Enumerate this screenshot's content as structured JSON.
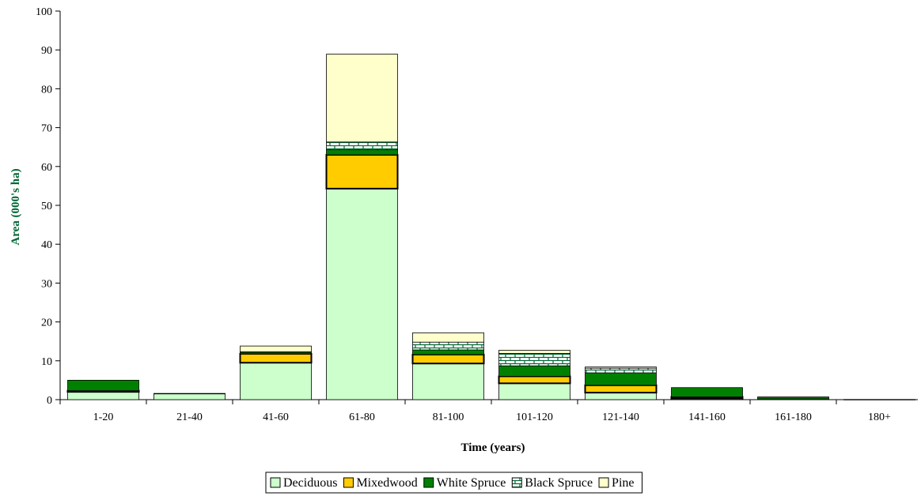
{
  "chart_data": {
    "type": "bar",
    "stacked": true,
    "title": "",
    "xlabel": "Time (years)",
    "ylabel": "Area (000's ha)",
    "ylim": [
      0,
      100
    ],
    "yticks": [
      0,
      10,
      20,
      30,
      40,
      50,
      60,
      70,
      80,
      90,
      100
    ],
    "grid": false,
    "legend_position": "bottom",
    "categories": [
      "1-20",
      "21-40",
      "41-60",
      "61-80",
      "81-100",
      "101-120",
      "121-140",
      "141-160",
      "161-180",
      "180+"
    ],
    "series": [
      {
        "name": "Deciduous",
        "color": "#ccffcc",
        "pattern": "none",
        "values": [
          2.0,
          1.5,
          9.5,
          54.3,
          9.3,
          4.2,
          1.8,
          0.3,
          0.2,
          0.05
        ]
      },
      {
        "name": "Mixedwood",
        "color": "#ffcc00",
        "pattern": "none",
        "values": [
          0.3,
          0.0,
          2.3,
          8.7,
          2.3,
          1.8,
          1.9,
          0.4,
          0.0,
          0.0
        ]
      },
      {
        "name": "White Spruce",
        "color": "#008000",
        "pattern": "none",
        "values": [
          2.7,
          0.1,
          0.4,
          1.3,
          1.2,
          2.7,
          3.2,
          2.4,
          0.5,
          0.0
        ]
      },
      {
        "name": "Black Spruce",
        "color": "#ffffff",
        "pattern": "brick",
        "values": [
          0.0,
          0.0,
          0.1,
          2.0,
          2.0,
          3.2,
          1.2,
          0.0,
          0.0,
          0.0
        ]
      },
      {
        "name": "Pine",
        "color": "#ffffcc",
        "pattern": "none",
        "values": [
          0.0,
          0.0,
          1.5,
          22.6,
          2.4,
          0.8,
          0.3,
          0.0,
          0.0,
          0.0
        ]
      }
    ]
  },
  "icons": {
    "legend_swatch": "square-swatch-icon"
  }
}
